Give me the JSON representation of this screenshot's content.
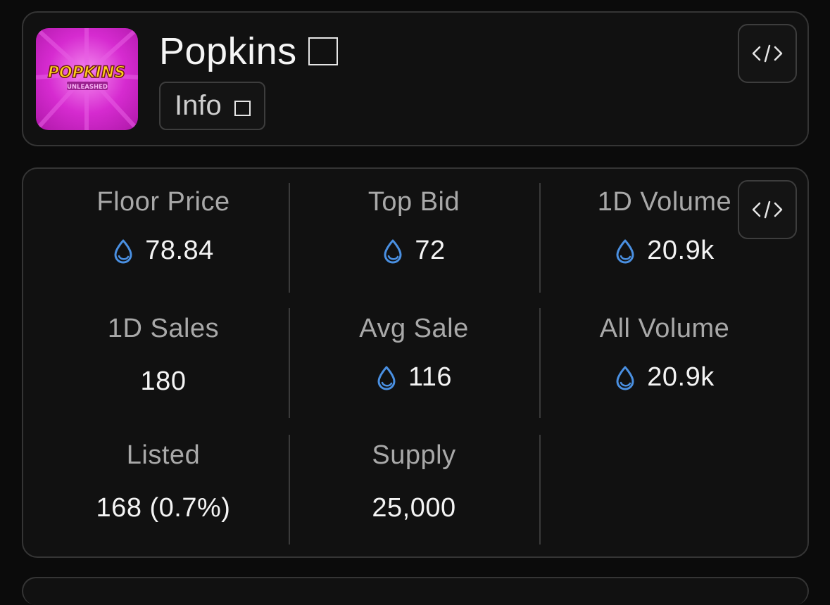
{
  "collection": {
    "name": "Popkins",
    "info_label": "Info",
    "logo": {
      "brand_text": "POPKINS",
      "sub_text": "UNLEASHED",
      "tiny_text": "",
      "background_color": "#d62bd0",
      "text_color": "#ffd21a"
    }
  },
  "icons": {
    "code": "code-icon",
    "copy": "square-icon",
    "currency": "sui-drop-icon"
  },
  "colors": {
    "accent": "#4a90e2",
    "card_border": "#353535",
    "background": "#0b0b0b"
  },
  "stats": {
    "floor_price": {
      "label": "Floor Price",
      "value": "78.84"
    },
    "top_bid": {
      "label": "Top Bid",
      "value": "72"
    },
    "volume_1d": {
      "label": "1D Volume",
      "value": "20.9k"
    },
    "sales_1d": {
      "label": "1D Sales",
      "value": "180"
    },
    "avg_sale": {
      "label": "Avg Sale",
      "value": "116"
    },
    "all_volume": {
      "label": "All Volume",
      "value": "20.9k"
    },
    "listed": {
      "label": "Listed",
      "value": "168 (0.7%)"
    },
    "supply": {
      "label": "Supply",
      "value": "25,000"
    }
  }
}
